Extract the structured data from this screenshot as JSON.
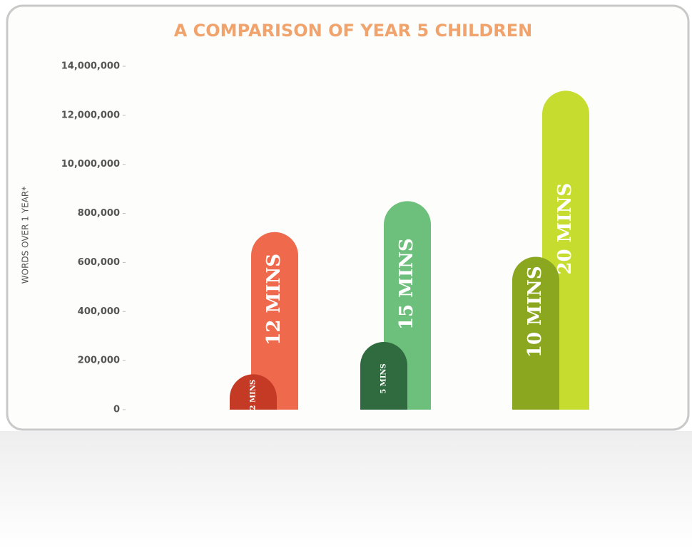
{
  "chart_data": {
    "type": "bar",
    "title": "A COMPARISON OF YEAR 5 CHILDREN",
    "y_label": "WORDS OVER 1 YEAR*",
    "categories": [
      "2 MINS",
      "12 MINS",
      "5 MINS",
      "15 MINS",
      "10 MINS",
      "20 MINS"
    ],
    "values": [
      144000,
      724000,
      276000,
      3100000,
      623000,
      13000000
    ],
    "colors": [
      "#c43a25",
      "#ef6a4d",
      "#2f6b3e",
      "#6dbf7c",
      "#8aa71f",
      "#c6dc2f"
    ],
    "ylim": [
      0,
      14000000
    ],
    "yticks": [
      0,
      {
        "value": 200000,
        "label": "200,000"
      },
      {
        "value": 400000,
        "label": "400,000"
      },
      {
        "value": 600000,
        "label": "600,000"
      },
      {
        "value": 800000,
        "label": "800,000"
      },
      {
        "value": 10000000,
        "label": "10,000,000"
      },
      {
        "value": 12000000,
        "label": "12,000,000"
      },
      {
        "value": 14000000,
        "label": "14,000,000"
      }
    ],
    "grid": false
  }
}
